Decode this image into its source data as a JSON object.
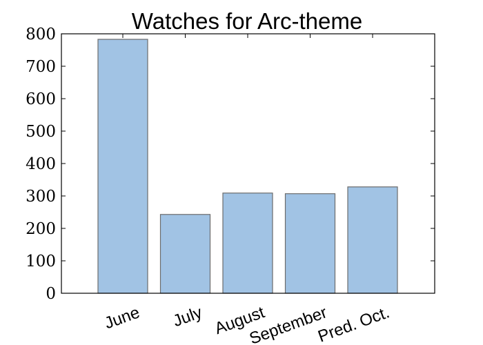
{
  "chart_data": {
    "type": "bar",
    "title": "Watches for Arc-theme",
    "xlabel": "",
    "ylabel": "",
    "categories": [
      "June",
      "July",
      "August",
      "September",
      "Pred. Oct."
    ],
    "values": [
      783,
      243,
      309,
      307,
      328
    ],
    "ylim": [
      0,
      800
    ],
    "yticks": [
      "0",
      "100",
      "200",
      "300",
      "400",
      "500",
      "600",
      "700",
      "800"
    ],
    "grid": false,
    "bar_color": "#a1c3e4",
    "bar_edge_color": "#6b6b6b"
  }
}
